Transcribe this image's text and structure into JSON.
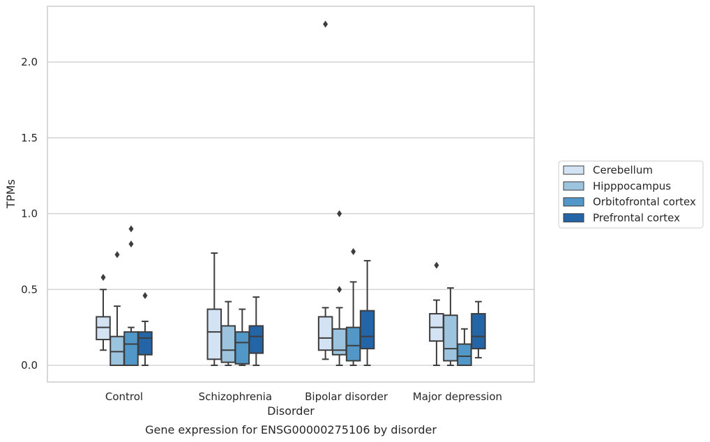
{
  "chart_data": {
    "type": "box",
    "caption": "Gene expression for ENSG00000275106 by disorder",
    "xlabel": "Disorder",
    "ylabel": "TPMs",
    "ylim": [
      -0.11,
      2.37
    ],
    "yticks": [
      0.0,
      0.5,
      1.0,
      1.5,
      2.0
    ],
    "ytick_labels": [
      "0.0",
      "0.5",
      "1.0",
      "1.5",
      "2.0"
    ],
    "grid": "horizontal",
    "legend_position": "right",
    "categories": [
      "Control",
      "Schizophrenia",
      "Bipolar disorder",
      "Major depression"
    ],
    "series": [
      {
        "name": "Cerebellum",
        "color": "#d4e3f3",
        "boxes": [
          {
            "whislo": 0.1,
            "q1": 0.17,
            "med": 0.25,
            "q3": 0.32,
            "whishi": 0.5,
            "fliers": [
              0.58
            ]
          },
          {
            "whislo": 0.0,
            "q1": 0.04,
            "med": 0.22,
            "q3": 0.37,
            "whishi": 0.74,
            "fliers": []
          },
          {
            "whislo": 0.04,
            "q1": 0.1,
            "med": 0.18,
            "q3": 0.32,
            "whishi": 0.38,
            "fliers": [
              2.25
            ]
          },
          {
            "whislo": 0.0,
            "q1": 0.16,
            "med": 0.25,
            "q3": 0.34,
            "whishi": 0.43,
            "fliers": [
              0.66
            ]
          }
        ]
      },
      {
        "name": "Hipppocampus",
        "color": "#9dc4de",
        "boxes": [
          {
            "whislo": 0.0,
            "q1": 0.0,
            "med": 0.09,
            "q3": 0.19,
            "whishi": 0.39,
            "fliers": [
              0.73
            ]
          },
          {
            "whislo": 0.0,
            "q1": 0.02,
            "med": 0.1,
            "q3": 0.26,
            "whishi": 0.42,
            "fliers": []
          },
          {
            "whislo": 0.0,
            "q1": 0.07,
            "med": 0.1,
            "q3": 0.24,
            "whishi": 0.38,
            "fliers": [
              0.5,
              1.0
            ]
          },
          {
            "whislo": 0.0,
            "q1": 0.03,
            "med": 0.11,
            "q3": 0.33,
            "whishi": 0.51,
            "fliers": []
          }
        ]
      },
      {
        "name": "Orbitofrontal cortex",
        "color": "#5197c7",
        "boxes": [
          {
            "whislo": 0.0,
            "q1": 0.0,
            "med": 0.14,
            "q3": 0.22,
            "whishi": 0.25,
            "fliers": [
              0.8,
              0.9
            ]
          },
          {
            "whislo": 0.0,
            "q1": 0.01,
            "med": 0.15,
            "q3": 0.22,
            "whishi": 0.37,
            "fliers": []
          },
          {
            "whislo": 0.0,
            "q1": 0.03,
            "med": 0.13,
            "q3": 0.25,
            "whishi": 0.55,
            "fliers": [
              0.75
            ]
          },
          {
            "whislo": 0.0,
            "q1": 0.0,
            "med": 0.06,
            "q3": 0.14,
            "whishi": 0.24,
            "fliers": []
          }
        ]
      },
      {
        "name": "Prefrontal cortex",
        "color": "#2465a7",
        "boxes": [
          {
            "whislo": 0.0,
            "q1": 0.07,
            "med": 0.18,
            "q3": 0.22,
            "whishi": 0.29,
            "fliers": [
              0.46
            ]
          },
          {
            "whislo": 0.0,
            "q1": 0.08,
            "med": 0.19,
            "q3": 0.26,
            "whishi": 0.45,
            "fliers": []
          },
          {
            "whislo": 0.0,
            "q1": 0.11,
            "med": 0.19,
            "q3": 0.36,
            "whishi": 0.69,
            "fliers": []
          },
          {
            "whislo": 0.05,
            "q1": 0.11,
            "med": 0.19,
            "q3": 0.34,
            "whishi": 0.42,
            "fliers": []
          }
        ]
      }
    ]
  }
}
